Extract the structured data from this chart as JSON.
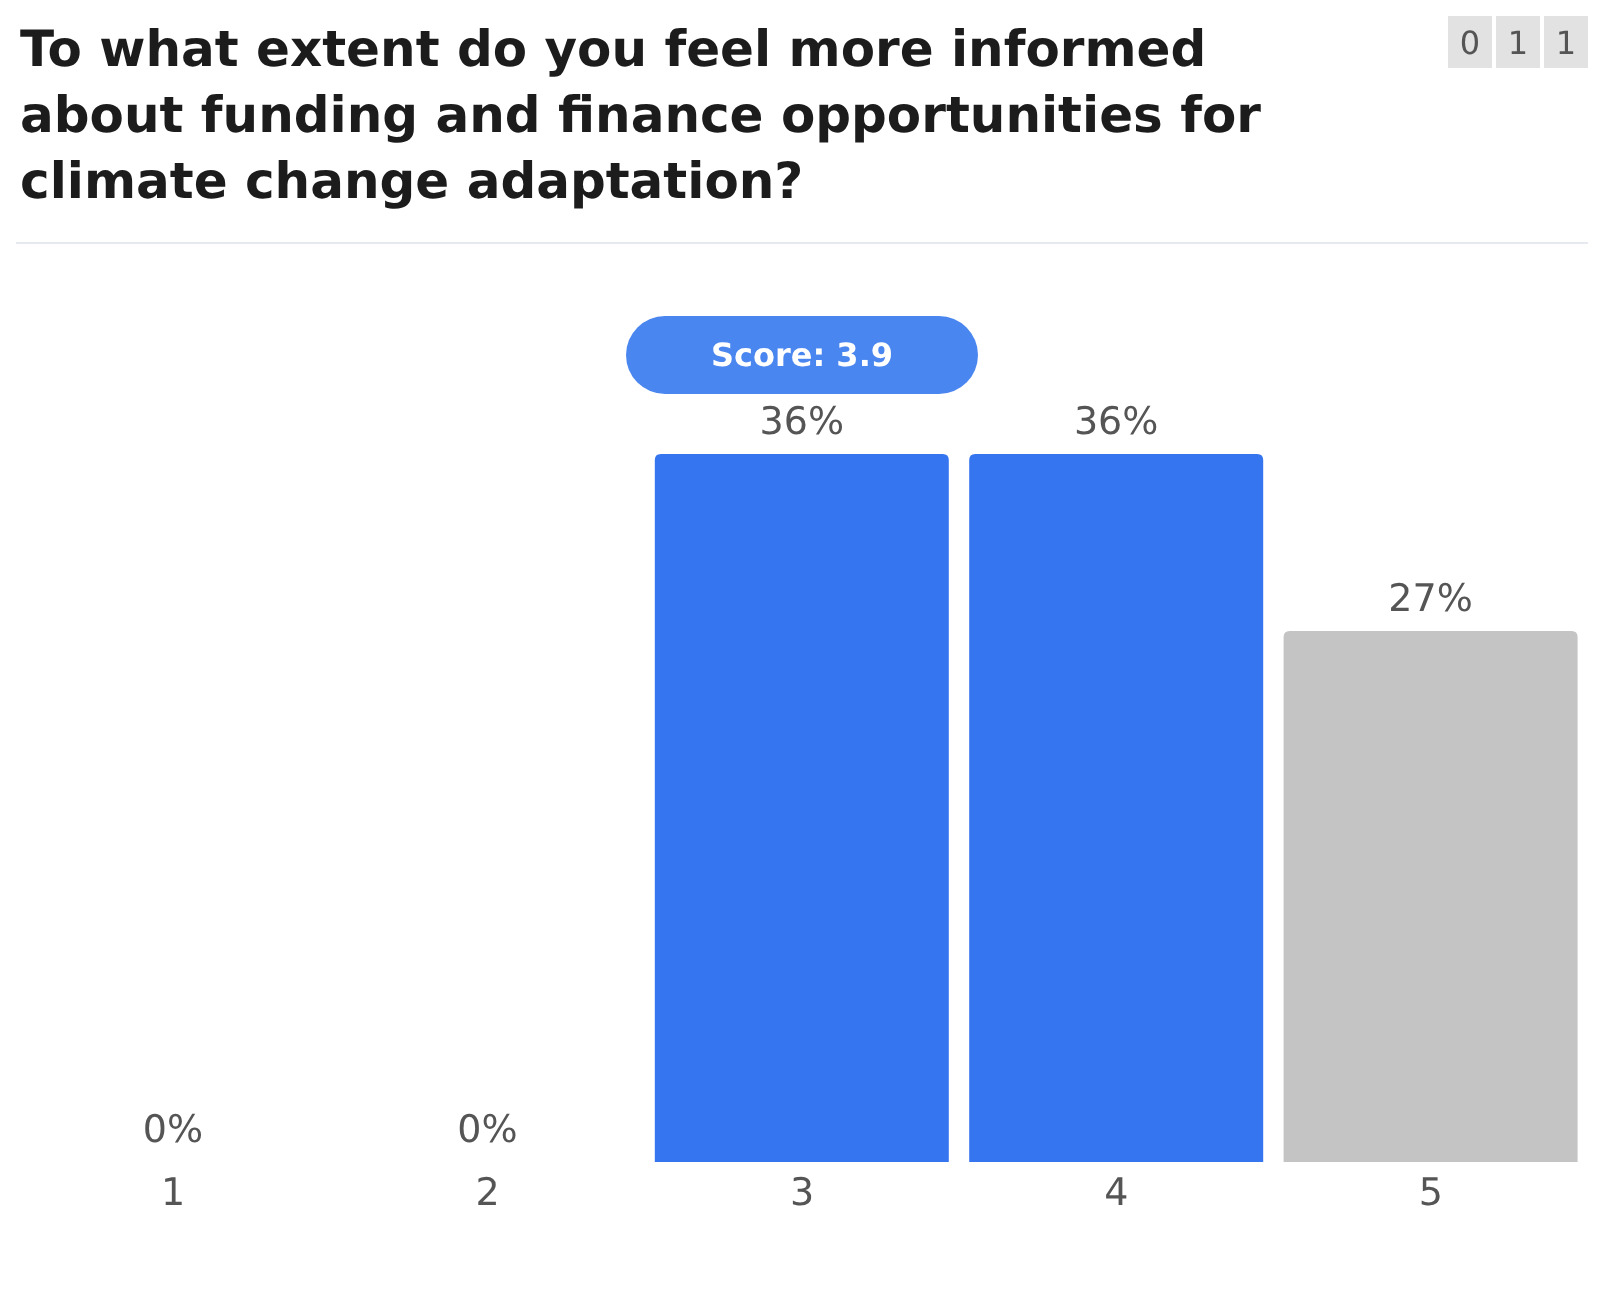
{
  "chart_data": {
    "type": "bar",
    "title": "To what extent do you feel more informed about funding and finance opportunities for climate change adaptation?",
    "annotations": [
      "Score: 3.9",
      "0 1 1"
    ],
    "categories": [
      "1",
      "2",
      "3",
      "4",
      "5"
    ],
    "values": [
      0,
      0,
      36,
      36,
      27
    ],
    "colors": [
      "#c4c4c4",
      "#c4c4c4",
      "#3575ef",
      "#3575ef",
      "#c4c4c4"
    ],
    "value_labels": [
      "0%",
      "0%",
      "36%",
      "36%",
      "27%"
    ]
  }
}
